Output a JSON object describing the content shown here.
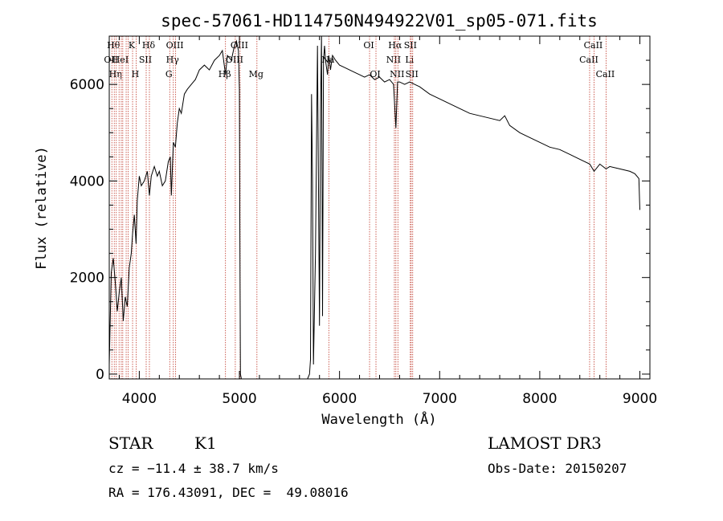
{
  "chart_data": {
    "type": "line",
    "title": "spec-57061-HD114750N494922V01_sp05-071.fits",
    "xlabel": "Wavelength (Å)",
    "ylabel": "Flux (relative)",
    "xlim": [
      3700,
      9100
    ],
    "ylim": [
      -100,
      7000
    ],
    "xticks": [
      4000,
      5000,
      6000,
      7000,
      8000,
      9000
    ],
    "xtick_labels": [
      "4000",
      "5000",
      "6000",
      "7000",
      "8000",
      "9000"
    ],
    "yticks": [
      0,
      2000,
      4000,
      6000
    ],
    "ytick_labels": [
      "0",
      "2000",
      "4000",
      "6000"
    ],
    "grid": false,
    "series": [
      {
        "x": [
          3700,
          3720,
          3740,
          3760,
          3780,
          3800,
          3820,
          3840,
          3860,
          3880,
          3900,
          3920,
          3933,
          3950,
          3968,
          3980,
          4000,
          4020,
          4050,
          4080,
          4101,
          4120,
          4150,
          4180,
          4200,
          4230,
          4260,
          4290,
          4310,
          4320,
          4340,
          4360,
          4380,
          4400,
          4420,
          4450,
          4480,
          4520,
          4560,
          4600,
          4650,
          4700,
          4750,
          4800,
          4830,
          4861,
          4880,
          4920,
          4950,
          4970,
          4990,
          5000,
          5005,
          5010,
          5020
        ],
        "y": [
          200,
          2100,
          2400,
          1900,
          1300,
          1700,
          2000,
          1100,
          1600,
          1400,
          2200,
          2500,
          2900,
          3300,
          2700,
          3600,
          4100,
          3900,
          4000,
          4200,
          3700,
          4100,
          4300,
          4100,
          4200,
          3900,
          4000,
          4400,
          4500,
          3700,
          4800,
          4700,
          5200,
          5500,
          5400,
          5800,
          5900,
          6000,
          6100,
          6300,
          6400,
          6300,
          6500,
          6600,
          6700,
          6200,
          6600,
          6500,
          6800,
          6900,
          6700,
          5900,
          2800,
          0,
          -200
        ]
      },
      {
        "x": [
          5680,
          5700,
          5710,
          5720,
          5730,
          5740,
          5760,
          5780,
          5800,
          5810,
          5820,
          5830,
          5840,
          5850,
          5860,
          5880,
          5893,
          5910,
          5930,
          5960,
          6000,
          6050,
          6100,
          6150,
          6200,
          6250,
          6300,
          6350,
          6400,
          6450,
          6500,
          6540,
          6563,
          6580,
          6600,
          6650,
          6700,
          6750,
          6800,
          6900,
          7000,
          7100,
          7200,
          7300,
          7400,
          7500,
          7600,
          7650,
          7700,
          7800,
          7900,
          8000,
          8100,
          8200,
          8300,
          8400,
          8500,
          8542,
          8600,
          8662,
          8700,
          8800,
          8900,
          8950,
          8990,
          9000
        ],
        "y": [
          -200,
          0,
          300,
          5800,
          4000,
          200,
          2500,
          6800,
          1000,
          5500,
          7000,
          1200,
          6500,
          6800,
          6500,
          6200,
          6600,
          6300,
          6600,
          6500,
          6400,
          6350,
          6300,
          6250,
          6200,
          6150,
          6200,
          6100,
          6150,
          6050,
          6100,
          6000,
          5100,
          6050,
          6050,
          6000,
          6050,
          6000,
          5950,
          5800,
          5700,
          5600,
          5500,
          5400,
          5350,
          5300,
          5250,
          5350,
          5150,
          5000,
          4900,
          4800,
          4700,
          4650,
          4550,
          4450,
          4350,
          4200,
          4350,
          4250,
          4300,
          4250,
          4200,
          4150,
          4050,
          3400
        ]
      }
    ],
    "line_marks": [
      {
        "x": 3726,
        "label": "OII",
        "row": 2
      },
      {
        "x": 3750,
        "label": "Hθ",
        "row": 1
      },
      {
        "x": 3770,
        "label": "Hη",
        "row": 3
      },
      {
        "x": 3798,
        "label": "",
        "row": 0
      },
      {
        "x": 3820,
        "label": "HeI",
        "row": 2
      },
      {
        "x": 3835,
        "label": "",
        "row": 0
      },
      {
        "x": 3869,
        "label": "",
        "row": 0
      },
      {
        "x": 3889,
        "label": "",
        "row": 0
      },
      {
        "x": 3933,
        "label": "K",
        "row": 1
      },
      {
        "x": 3968,
        "label": "H",
        "row": 3
      },
      {
        "x": 4069,
        "label": "SII",
        "row": 2
      },
      {
        "x": 4101,
        "label": "Hδ",
        "row": 1
      },
      {
        "x": 4304,
        "label": "G",
        "row": 3
      },
      {
        "x": 4340,
        "label": "Hγ",
        "row": 2
      },
      {
        "x": 4363,
        "label": "OIII",
        "row": 1
      },
      {
        "x": 4861,
        "label": "Hβ",
        "row": 3
      },
      {
        "x": 4959,
        "label": "OIII",
        "row": 2
      },
      {
        "x": 5007,
        "label": "OIII",
        "row": 1
      },
      {
        "x": 5175,
        "label": "Mg",
        "row": 3
      },
      {
        "x": 5893,
        "label": "Na",
        "row": 2
      },
      {
        "x": 6300,
        "label": "OI",
        "row": 1
      },
      {
        "x": 6364,
        "label": "OI",
        "row": 3
      },
      {
        "x": 6548,
        "label": "NII",
        "row": 2
      },
      {
        "x": 6563,
        "label": "Hα",
        "row": 1
      },
      {
        "x": 6583,
        "label": "NII",
        "row": 3
      },
      {
        "x": 6707,
        "label": "Li",
        "row": 2
      },
      {
        "x": 6716,
        "label": "SII",
        "row": 1
      },
      {
        "x": 6731,
        "label": "SII",
        "row": 3
      },
      {
        "x": 8498,
        "label": "CaII",
        "row": 2
      },
      {
        "x": 8542,
        "label": "CaII",
        "row": 1
      },
      {
        "x": 8662,
        "label": "CaII",
        "row": 3
      }
    ]
  },
  "footer": {
    "object_type": "STAR",
    "subclass": "K1",
    "survey": "LAMOST DR3",
    "cz": "cz = −11.4 ± 38.7 km/s",
    "obs_date": "Obs-Date: 20150207",
    "coords": "RA = 176.43091, DEC =  49.08016"
  }
}
